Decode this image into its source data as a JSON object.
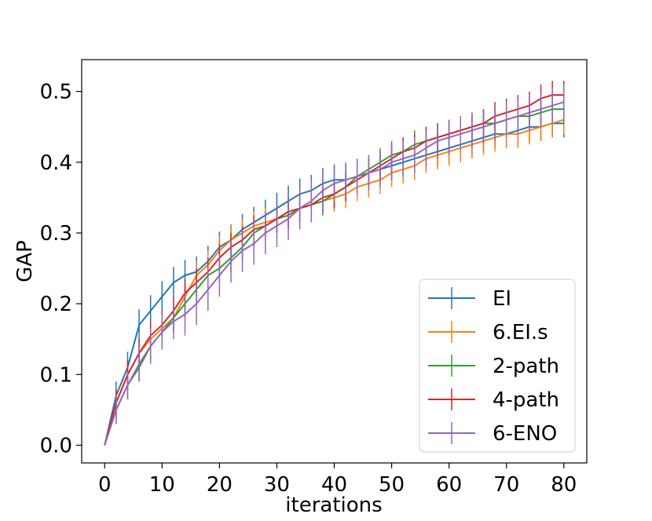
{
  "chart_data": {
    "type": "line",
    "title": "",
    "xlabel": "iterations",
    "ylabel": "GAP",
    "xlim": [
      -4,
      84
    ],
    "ylim": [
      -0.025,
      0.545
    ],
    "xticks": [
      0,
      10,
      20,
      30,
      40,
      50,
      60,
      70,
      80
    ],
    "xtick_labels": [
      "0",
      "10",
      "20",
      "30",
      "40",
      "50",
      "60",
      "70",
      "80"
    ],
    "yticks": [
      0.0,
      0.1,
      0.2,
      0.3,
      0.4,
      0.5
    ],
    "ytick_labels": [
      "0.0",
      "0.1",
      "0.2",
      "0.3",
      "0.4",
      "0.5"
    ],
    "grid": false,
    "legend_position": "lower-right",
    "x": [
      0,
      2,
      4,
      6,
      8,
      10,
      12,
      14,
      16,
      18,
      20,
      22,
      24,
      26,
      28,
      30,
      32,
      34,
      36,
      38,
      40,
      42,
      44,
      46,
      48,
      50,
      52,
      54,
      56,
      58,
      60,
      62,
      64,
      66,
      68,
      70,
      72,
      74,
      76,
      78,
      80
    ],
    "series": [
      {
        "name": "EI",
        "color": "#1f77b4",
        "values": [
          0.0,
          0.07,
          0.11,
          0.17,
          0.19,
          0.21,
          0.23,
          0.24,
          0.245,
          0.26,
          0.28,
          0.29,
          0.305,
          0.315,
          0.325,
          0.335,
          0.345,
          0.355,
          0.36,
          0.37,
          0.375,
          0.375,
          0.38,
          0.385,
          0.39,
          0.395,
          0.4,
          0.405,
          0.41,
          0.415,
          0.42,
          0.425,
          0.43,
          0.435,
          0.44,
          0.44,
          0.445,
          0.45,
          0.45,
          0.455,
          0.455
        ],
        "errors": [
          0.0,
          0.02,
          0.022,
          0.022,
          0.022,
          0.022,
          0.022,
          0.022,
          0.022,
          0.022,
          0.022,
          0.022,
          0.022,
          0.022,
          0.022,
          0.022,
          0.022,
          0.022,
          0.022,
          0.022,
          0.022,
          0.022,
          0.022,
          0.022,
          0.02,
          0.02,
          0.02,
          0.02,
          0.02,
          0.02,
          0.02,
          0.02,
          0.02,
          0.02,
          0.02,
          0.02,
          0.02,
          0.02,
          0.02,
          0.02,
          0.02
        ]
      },
      {
        "name": "6.EI.s",
        "color": "#ff7f0e",
        "values": [
          0.0,
          0.06,
          0.1,
          0.13,
          0.15,
          0.165,
          0.18,
          0.21,
          0.24,
          0.255,
          0.275,
          0.29,
          0.3,
          0.31,
          0.315,
          0.32,
          0.325,
          0.335,
          0.34,
          0.345,
          0.35,
          0.355,
          0.365,
          0.37,
          0.375,
          0.385,
          0.39,
          0.395,
          0.405,
          0.41,
          0.415,
          0.42,
          0.425,
          0.43,
          0.435,
          0.44,
          0.44,
          0.445,
          0.45,
          0.455,
          0.46
        ],
        "errors": [
          0.0,
          0.02,
          0.02,
          0.02,
          0.02,
          0.02,
          0.02,
          0.02,
          0.02,
          0.02,
          0.02,
          0.02,
          0.02,
          0.02,
          0.02,
          0.02,
          0.02,
          0.02,
          0.02,
          0.02,
          0.02,
          0.02,
          0.02,
          0.02,
          0.02,
          0.02,
          0.02,
          0.02,
          0.02,
          0.02,
          0.02,
          0.02,
          0.02,
          0.02,
          0.02,
          0.02,
          0.02,
          0.02,
          0.02,
          0.02,
          0.02
        ]
      },
      {
        "name": "2-path",
        "color": "#2ca02c",
        "values": [
          0.0,
          0.05,
          0.085,
          0.11,
          0.14,
          0.16,
          0.18,
          0.2,
          0.22,
          0.24,
          0.25,
          0.265,
          0.28,
          0.3,
          0.31,
          0.32,
          0.325,
          0.335,
          0.34,
          0.345,
          0.355,
          0.365,
          0.38,
          0.39,
          0.4,
          0.41,
          0.415,
          0.425,
          0.43,
          0.435,
          0.44,
          0.445,
          0.45,
          0.455,
          0.455,
          0.46,
          0.465,
          0.465,
          0.47,
          0.475,
          0.475
        ],
        "errors": [
          0.0,
          0.02,
          0.02,
          0.02,
          0.02,
          0.02,
          0.02,
          0.02,
          0.02,
          0.02,
          0.02,
          0.02,
          0.02,
          0.02,
          0.02,
          0.02,
          0.02,
          0.02,
          0.02,
          0.02,
          0.02,
          0.02,
          0.02,
          0.02,
          0.02,
          0.02,
          0.02,
          0.02,
          0.02,
          0.02,
          0.02,
          0.02,
          0.02,
          0.02,
          0.02,
          0.02,
          0.02,
          0.02,
          0.02,
          0.02,
          0.02
        ]
      },
      {
        "name": "4-path",
        "color": "#d62728",
        "values": [
          0.0,
          0.06,
          0.1,
          0.13,
          0.155,
          0.17,
          0.19,
          0.215,
          0.23,
          0.245,
          0.265,
          0.28,
          0.29,
          0.305,
          0.31,
          0.32,
          0.33,
          0.335,
          0.34,
          0.35,
          0.355,
          0.365,
          0.375,
          0.385,
          0.395,
          0.405,
          0.415,
          0.42,
          0.43,
          0.435,
          0.44,
          0.445,
          0.45,
          0.455,
          0.465,
          0.47,
          0.475,
          0.48,
          0.49,
          0.495,
          0.495
        ],
        "errors": [
          0.0,
          0.02,
          0.02,
          0.02,
          0.02,
          0.02,
          0.02,
          0.02,
          0.02,
          0.02,
          0.02,
          0.02,
          0.02,
          0.02,
          0.02,
          0.02,
          0.02,
          0.02,
          0.02,
          0.02,
          0.02,
          0.02,
          0.02,
          0.02,
          0.02,
          0.02,
          0.02,
          0.02,
          0.02,
          0.02,
          0.02,
          0.02,
          0.02,
          0.02,
          0.02,
          0.02,
          0.02,
          0.02,
          0.02,
          0.02,
          0.02
        ]
      },
      {
        "name": "6-ENO",
        "color": "#9467bd",
        "values": [
          0.0,
          0.05,
          0.085,
          0.115,
          0.14,
          0.16,
          0.175,
          0.185,
          0.2,
          0.22,
          0.24,
          0.26,
          0.275,
          0.285,
          0.3,
          0.31,
          0.32,
          0.335,
          0.345,
          0.36,
          0.37,
          0.375,
          0.38,
          0.385,
          0.39,
          0.4,
          0.405,
          0.41,
          0.42,
          0.43,
          0.435,
          0.44,
          0.445,
          0.45,
          0.455,
          0.46,
          0.465,
          0.47,
          0.475,
          0.48,
          0.485
        ],
        "errors": [
          0.0,
          0.02,
          0.02,
          0.025,
          0.025,
          0.025,
          0.025,
          0.03,
          0.03,
          0.03,
          0.03,
          0.03,
          0.03,
          0.03,
          0.03,
          0.03,
          0.03,
          0.03,
          0.03,
          0.03,
          0.025,
          0.025,
          0.025,
          0.025,
          0.025,
          0.025,
          0.025,
          0.025,
          0.025,
          0.025,
          0.025,
          0.025,
          0.025,
          0.025,
          0.025,
          0.025,
          0.025,
          0.025,
          0.025,
          0.025,
          0.025
        ]
      }
    ]
  }
}
